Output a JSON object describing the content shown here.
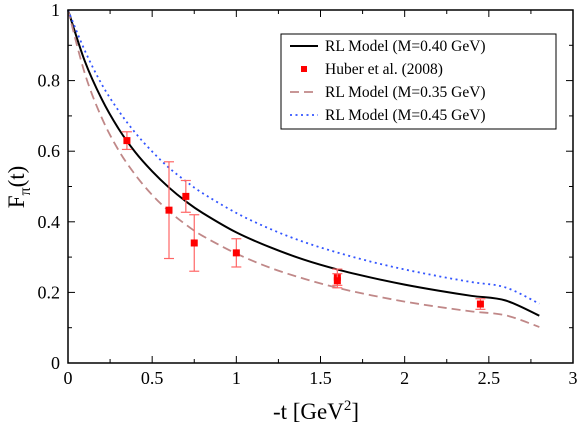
{
  "chart_data": {
    "type": "line",
    "title": "",
    "xlabel": "-t [GeV",
    "xlabel_sup": "2",
    "xlabel_end": "]",
    "ylabel": "F",
    "ylabel_sub": "π",
    "ylabel_end": "(t)",
    "xlim": [
      0,
      3
    ],
    "ylim": [
      0,
      1
    ],
    "xticks": [
      0,
      0.5,
      1,
      1.5,
      2,
      2.5,
      3
    ],
    "yticks": [
      0,
      0.2,
      0.4,
      0.6,
      0.8,
      1
    ],
    "xtick_labels": [
      "0",
      "0.5",
      "1",
      "1.5",
      "2",
      "2.5",
      "3"
    ],
    "ytick_labels": [
      "0",
      "0.2",
      "0.4",
      "0.6",
      "0.8",
      "1"
    ],
    "grid": false,
    "legend_position": "top-right",
    "series": [
      {
        "name": "RL Model (M=0.40 GeV)",
        "kind": "line",
        "style": "solid",
        "color": "#000000",
        "x": [
          0,
          0.1,
          0.2,
          0.3,
          0.4,
          0.5,
          0.6,
          0.7,
          0.8,
          1.0,
          1.2,
          1.4,
          1.6,
          1.8,
          2.0,
          2.2,
          2.4,
          2.6,
          2.8
        ],
        "y": [
          1.0,
          0.855,
          0.748,
          0.664,
          0.597,
          0.543,
          0.497,
          0.458,
          0.425,
          0.37,
          0.328,
          0.293,
          0.265,
          0.242,
          0.222,
          0.205,
          0.19,
          0.177,
          0.134
        ]
      },
      {
        "name": "Huber et al. (2008)",
        "kind": "scatter",
        "color": "#ff0000",
        "errorbar_color": "#ff6666",
        "x": [
          0.35,
          0.6,
          0.7,
          0.75,
          1.0,
          1.6,
          1.6,
          2.45
        ],
        "y": [
          0.63,
          0.433,
          0.472,
          0.34,
          0.312,
          0.243,
          0.233,
          0.167
        ],
        "yerr": [
          0.025,
          0.137,
          0.045,
          0.08,
          0.04,
          0.023,
          0.02,
          0.015
        ]
      },
      {
        "name": "RL Model (M=0.35 GeV)",
        "kind": "line",
        "style": "dashed",
        "color": "#c08888",
        "x": [
          0,
          0.1,
          0.2,
          0.3,
          0.4,
          0.5,
          0.6,
          0.7,
          0.8,
          1.0,
          1.2,
          1.4,
          1.6,
          1.8,
          2.0,
          2.2,
          2.4,
          2.6,
          2.8
        ],
        "y": [
          1.0,
          0.82,
          0.695,
          0.603,
          0.533,
          0.476,
          0.43,
          0.392,
          0.36,
          0.31,
          0.27,
          0.239,
          0.213,
          0.192,
          0.174,
          0.159,
          0.146,
          0.135,
          0.102
        ]
      },
      {
        "name": "RL Model (M=0.45 GeV)",
        "kind": "line",
        "style": "dotted",
        "color": "#3355ff",
        "x": [
          0,
          0.1,
          0.2,
          0.3,
          0.4,
          0.5,
          0.6,
          0.7,
          0.8,
          1.0,
          1.2,
          1.4,
          1.6,
          1.8,
          2.0,
          2.2,
          2.4,
          2.6,
          2.8
        ],
        "y": [
          1.0,
          0.885,
          0.79,
          0.715,
          0.652,
          0.599,
          0.553,
          0.515,
          0.481,
          0.425,
          0.38,
          0.343,
          0.313,
          0.287,
          0.265,
          0.246,
          0.229,
          0.214,
          0.168
        ]
      }
    ]
  }
}
